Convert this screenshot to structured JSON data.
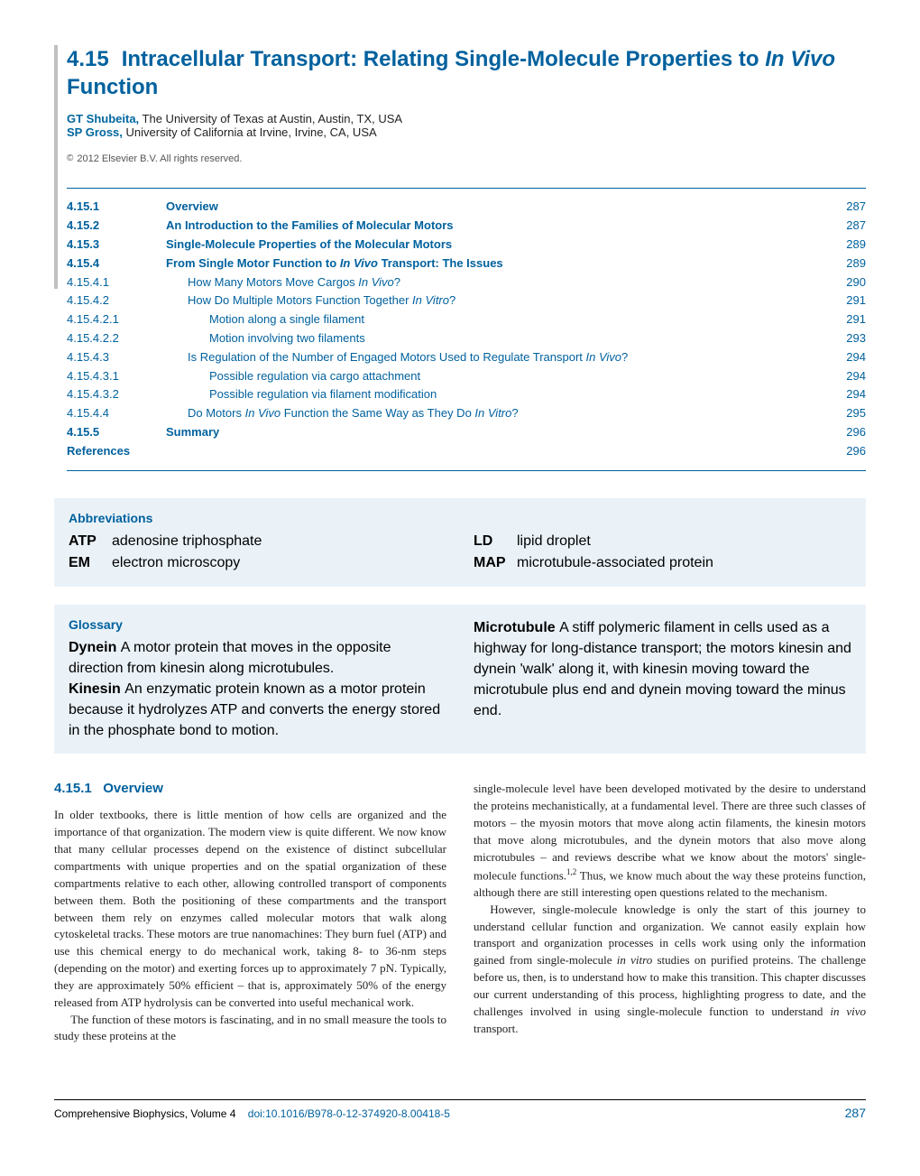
{
  "colors": {
    "accent": "#00619e",
    "box_bg": "#eaf2f8",
    "bar": "#c0c0c0"
  },
  "title": {
    "num": "4.15",
    "main": "Intracellular Transport: Relating Single-Molecule Properties to ",
    "ital": "In Vivo",
    "tail": " Function"
  },
  "authors": [
    {
      "name": "GT Shubeita,",
      "affil": " The University of Texas at Austin, Austin, TX, USA"
    },
    {
      "name": "SP Gross,",
      "affil": " University of California at Irvine, Irvine, CA, USA"
    }
  ],
  "copyright": "2012 Elsevier B.V. All rights reserved.",
  "toc": [
    {
      "num": "4.15.1",
      "title": "Overview",
      "page": "287",
      "bold": true
    },
    {
      "num": "4.15.2",
      "title": "An Introduction to the Families of Molecular Motors",
      "page": "287",
      "bold": true
    },
    {
      "num": "4.15.3",
      "title": "Single-Molecule Properties of the Molecular Motors",
      "page": "289",
      "bold": true
    },
    {
      "num": "4.15.4",
      "title_pre": "From Single Motor Function to ",
      "title_ital": "In Vivo",
      "title_post": " Transport: The Issues",
      "page": "289",
      "bold": true
    },
    {
      "num": "4.15.4.1",
      "title_pre": "How Many Motors Move Cargos ",
      "title_ital": "In Vivo",
      "title_post": "?",
      "page": "290",
      "indent": 1
    },
    {
      "num": "4.15.4.2",
      "title_pre": "How Do Multiple Motors Function Together ",
      "title_ital": "In Vitro",
      "title_post": "?",
      "page": "291",
      "indent": 1
    },
    {
      "num": "4.15.4.2.1",
      "title": "Motion along a single filament",
      "page": "291",
      "indent": 2
    },
    {
      "num": "4.15.4.2.2",
      "title": "Motion involving two filaments",
      "page": "293",
      "indent": 2
    },
    {
      "num": "4.15.4.3",
      "title_pre": "Is Regulation of the Number of Engaged Motors Used to Regulate Transport ",
      "title_ital": "In Vivo",
      "title_post": "?",
      "page": "294",
      "indent": 1
    },
    {
      "num": "4.15.4.3.1",
      "title": "Possible regulation via cargo attachment",
      "page": "294",
      "indent": 2
    },
    {
      "num": "4.15.4.3.2",
      "title": "Possible regulation via filament modification",
      "page": "294",
      "indent": 2
    },
    {
      "num": "4.15.4.4",
      "title_pre": "Do Motors ",
      "title_ital": "In Vivo",
      "title_post_pre": " Function the Same Way as They Do ",
      "title_ital2": "In Vitro",
      "title_post": "?",
      "page": "295",
      "indent": 1
    },
    {
      "num": "4.15.5",
      "title": "Summary",
      "page": "296",
      "bold": true
    },
    {
      "num": "References",
      "title": "",
      "page": "296",
      "bold": true,
      "nolabel": true
    }
  ],
  "abbr_hd": "Abbreviations",
  "abbr": {
    "left": [
      {
        "k": "ATP",
        "v": "adenosine triphosphate"
      },
      {
        "k": "EM",
        "v": "electron microscopy"
      }
    ],
    "right": [
      {
        "k": "LD",
        "v": "lipid droplet"
      },
      {
        "k": "MAP",
        "v": "microtubule-associated protein"
      }
    ]
  },
  "gloss_hd": "Glossary",
  "gloss": {
    "left": [
      {
        "term": "Dynein",
        "def": "A motor protein that moves in the opposite direction from kinesin along microtubules."
      },
      {
        "term": "Kinesin",
        "def": "An enzymatic protein known as a motor protein because it hydrolyzes ATP and converts the energy stored in the phosphate bond to motion."
      }
    ],
    "right": [
      {
        "term": "Microtubule",
        "def": "A stiff polymeric filament in cells used as a highway for long-distance transport; the motors kinesin and dynein 'walk' along it, with kinesin moving toward the microtubule plus end and dynein moving toward the minus end."
      }
    ]
  },
  "section": {
    "num": "4.15.1",
    "title": "Overview"
  },
  "body": {
    "left": [
      "In older textbooks, there is little mention of how cells are organized and the importance of that organization. The modern view is quite different. We now know that many cellular processes depend on the existence of distinct subcellular compartments with unique properties and on the spatial organization of these compartments relative to each other, allowing controlled transport of components between them. Both the positioning of these compartments and the transport between them rely on enzymes called molecular motors that walk along cytoskeletal tracks. These motors are true nanomachines: They burn fuel (ATP) and use this chemical energy to do mechanical work, taking 8- to 36-nm steps (depending on the motor) and exerting forces up to approximately 7 pN. Typically, they are approximately 50% efficient – that is, approximately 50% of the energy released from ATP hydrolysis can be converted into useful mechanical work.",
      "The function of these motors is fascinating, and in no small measure the tools to study these proteins at the"
    ],
    "right": [
      "single-molecule level have been developed motivated by the desire to understand the proteins mechanistically, at a fundamental level. There are three such classes of motors – the myosin motors that move along actin filaments, the kinesin motors that move along microtubules, and the dynein motors that also move along microtubules – and reviews describe what we know about the motors' single-molecule functions.",
      "Thus, we know much about the way these proteins function, although there are still interesting open questions related to the mechanism.",
      "However, single-molecule knowledge is only the start of this journey to understand cellular function and organization. We cannot easily explain how transport and organization processes in cells work using only the information gained from single-molecule in vitro studies on purified proteins. The challenge before us, then, is to understand how to make this transition. This chapter discusses our current understanding of this process, highlighting progress to date, and the challenges involved in using single-molecule function to understand in vivo transport."
    ],
    "right_sup": "1,2"
  },
  "footer": {
    "left": "Comprehensive Biophysics, Volume 4",
    "doi": "doi:10.1016/B978-0-12-374920-8.00418-5",
    "page": "287"
  }
}
